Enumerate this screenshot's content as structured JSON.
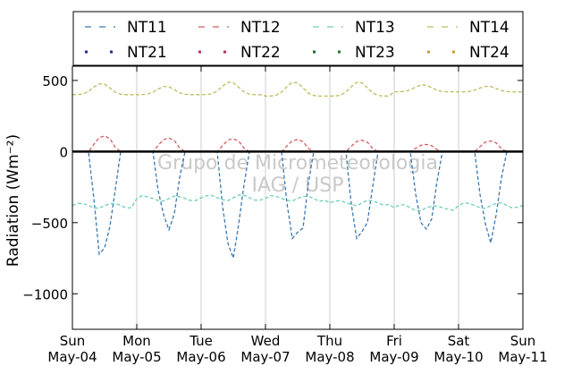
{
  "chart_data": {
    "type": "line",
    "title": "",
    "xlabel": "",
    "ylabel": "Radiation (Wm⁻²)",
    "ylim": [
      -1250,
      600
    ],
    "xlim": [
      "2014-05-04",
      "2014-05-11"
    ],
    "yticks": [
      500,
      0,
      -500,
      -1000
    ],
    "ytick_labels": [
      "500",
      "0",
      "−500",
      "−1000"
    ],
    "xticks": [
      {
        "day": "Sun",
        "date": "May-04"
      },
      {
        "day": "Mon",
        "date": "May-05"
      },
      {
        "day": "Tue",
        "date": "May-06"
      },
      {
        "day": "Wed",
        "date": "May-07"
      },
      {
        "day": "Thu",
        "date": "May-08"
      },
      {
        "day": "Fri",
        "date": "May-09"
      },
      {
        "day": "Sat",
        "date": "May-10"
      },
      {
        "day": "Sun",
        "date": "May-11"
      }
    ],
    "grid": "vertical",
    "legend_position": "top",
    "watermark": [
      "Grupo de Micrometeorologia",
      "IAG / USP"
    ],
    "zero_line": true,
    "series": [
      {
        "name": "NT11",
        "style": "dashed",
        "color": "#3a78b0",
        "daily_min": [
          -780,
          -560,
          -750,
          -700,
          -680,
          -580,
          -640
        ],
        "night_value": 0
      },
      {
        "name": "NT12",
        "style": "dashed",
        "color": "#d0605e",
        "daily_max": [
          110,
          95,
          90,
          85,
          80,
          50,
          75
        ],
        "night_value": 0
      },
      {
        "name": "NT13",
        "style": "dashed",
        "color": "#6ccfb5",
        "daily_mean": [
          -380,
          -330,
          -325,
          -330,
          -360,
          -395,
          -380
        ]
      },
      {
        "name": "NT14",
        "style": "dashed",
        "color": "#bcbc5e",
        "daily_peak": [
          480,
          460,
          490,
          490,
          490,
          470,
          460
        ],
        "daily_trough": [
          400,
          400,
          400,
          390,
          390,
          420,
          420
        ]
      },
      {
        "name": "NT21",
        "style": "dotted",
        "color": "#1f2d8a",
        "values": []
      },
      {
        "name": "NT22",
        "style": "dotted",
        "color": "#b03060",
        "values": []
      },
      {
        "name": "NT23",
        "style": "dotted",
        "color": "#1e6e2e",
        "values": []
      },
      {
        "name": "NT24",
        "style": "dotted",
        "color": "#c8a020",
        "values": []
      }
    ]
  }
}
